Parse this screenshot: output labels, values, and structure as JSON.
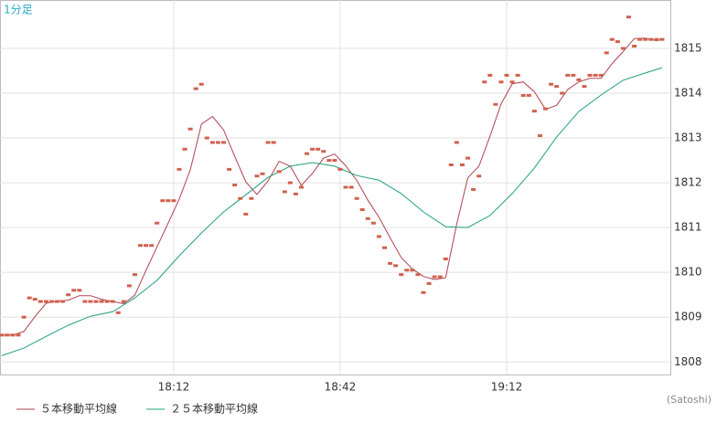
{
  "chart_data": {
    "type": "line",
    "title": "1分足",
    "credit": "(Satoshi)",
    "xlim": [
      1060.7,
      1181.5
    ],
    "ylim": [
      1807.72,
      1816.08
    ],
    "xticks": [
      {
        "value": 1092,
        "label": "18:12"
      },
      {
        "value": 1122,
        "label": "18:42"
      },
      {
        "value": 1152,
        "label": "19:12"
      }
    ],
    "yticks": [
      1808,
      1809,
      1810,
      1811,
      1812,
      1813,
      1814,
      1815
    ],
    "grid": true,
    "points": {
      "color": "#d0604e",
      "x": [
        1061,
        1062,
        1063,
        1064,
        1065,
        1066,
        1067,
        1068,
        1069,
        1070,
        1071,
        1072,
        1073,
        1074,
        1075,
        1076,
        1077,
        1078,
        1079,
        1080,
        1081,
        1082,
        1083,
        1084,
        1085,
        1086,
        1087,
        1088,
        1089,
        1090,
        1091,
        1092,
        1093,
        1094,
        1095,
        1096,
        1097,
        1098,
        1099,
        1100,
        1101,
        1102,
        1103,
        1104,
        1105,
        1106,
        1107,
        1108,
        1109,
        1110,
        1111,
        1112,
        1113,
        1114,
        1115,
        1116,
        1117,
        1118,
        1119,
        1120,
        1121,
        1122,
        1123,
        1124,
        1125,
        1126,
        1127,
        1128,
        1129,
        1130,
        1131,
        1132,
        1133,
        1134,
        1135,
        1136,
        1137,
        1138,
        1139,
        1140,
        1141,
        1142,
        1143,
        1144,
        1145,
        1146,
        1147,
        1148,
        1149,
        1150,
        1151,
        1152,
        1153,
        1154,
        1155,
        1156,
        1157,
        1158,
        1159,
        1160,
        1161,
        1162,
        1163,
        1164,
        1165,
        1166,
        1167,
        1168,
        1169,
        1170,
        1171,
        1172,
        1173,
        1174,
        1175,
        1176,
        1177,
        1178,
        1179,
        1180
      ],
      "values": [
        1808.6,
        1808.6,
        1808.6,
        1808.6,
        1809.0,
        1809.43,
        1809.4,
        1809.35,
        1809.35,
        1809.35,
        1809.35,
        1809.35,
        1809.5,
        1809.6,
        1809.6,
        1809.35,
        1809.35,
        1809.35,
        1809.35,
        1809.35,
        1809.35,
        1809.1,
        1809.35,
        1809.7,
        1809.95,
        1810.6,
        1810.6,
        1810.6,
        1811.1,
        1811.6,
        1811.6,
        1811.6,
        1812.3,
        1812.75,
        1813.2,
        1814.1,
        1814.2,
        1813.0,
        1812.9,
        1812.9,
        1812.9,
        1812.3,
        1811.95,
        1811.65,
        1811.3,
        1811.65,
        1812.15,
        1812.2,
        1812.9,
        1812.9,
        1812.25,
        1811.8,
        1812.0,
        1811.75,
        1811.9,
        1812.65,
        1812.75,
        1812.75,
        1812.7,
        1812.5,
        1812.5,
        1812.3,
        1811.9,
        1811.9,
        1811.65,
        1811.4,
        1811.2,
        1811.1,
        1810.8,
        1810.55,
        1810.2,
        1810.15,
        1809.95,
        1810.05,
        1810.05,
        1809.95,
        1809.55,
        1809.75,
        1809.9,
        1809.9,
        1810.3,
        1812.4,
        1812.9,
        1812.4,
        1812.55,
        1811.85,
        1812.15,
        1814.25,
        1814.4,
        1813.75,
        1814.25,
        1814.4,
        1814.25,
        1814.4,
        1813.95,
        1813.95,
        1813.6,
        1813.05,
        1813.65,
        1814.2,
        1814.15,
        1814.0,
        1814.4,
        1814.4,
        1814.3,
        1814.15,
        1814.4,
        1814.4,
        1814.4,
        1814.9,
        1815.2,
        1815.15,
        1815.0,
        1815.7,
        1815.05,
        1815.2,
        1815.2,
        1815.2,
        1815.2,
        1815.2
      ]
    },
    "series": [
      {
        "name": "５本移動平均線",
        "color": "#b0404e",
        "x": [
          1061,
          1063,
          1065,
          1067,
          1069,
          1071,
          1073,
          1075,
          1077,
          1079,
          1081,
          1083,
          1085,
          1087,
          1089,
          1091,
          1093,
          1095,
          1097,
          1099,
          1101,
          1103,
          1105,
          1107,
          1109,
          1111,
          1113,
          1115,
          1117,
          1119,
          1121,
          1123,
          1125,
          1127,
          1129,
          1131,
          1133,
          1135,
          1137,
          1139,
          1141,
          1143,
          1145,
          1147,
          1149,
          1151,
          1153,
          1155,
          1157,
          1159,
          1161,
          1163,
          1165,
          1167,
          1169,
          1171,
          1173,
          1175,
          1177,
          1179,
          1180
        ],
        "values": [
          1808.6,
          1808.6,
          1808.68,
          1809.01,
          1809.31,
          1809.36,
          1809.38,
          1809.48,
          1809.48,
          1809.4,
          1809.35,
          1809.3,
          1809.49,
          1810.04,
          1810.57,
          1811.1,
          1811.64,
          1812.29,
          1813.31,
          1813.48,
          1813.18,
          1812.59,
          1812.02,
          1811.74,
          1812.04,
          1812.48,
          1812.37,
          1811.94,
          1812.21,
          1812.55,
          1812.64,
          1812.38,
          1812.05,
          1811.61,
          1811.23,
          1810.77,
          1810.33,
          1810.08,
          1809.91,
          1809.84,
          1809.88,
          1811.08,
          1812.11,
          1812.37,
          1813.04,
          1813.76,
          1814.21,
          1814.25,
          1814.03,
          1813.64,
          1813.73,
          1814.08,
          1814.25,
          1814.33,
          1814.33,
          1814.66,
          1814.93,
          1815.22,
          1815.23,
          1815.17,
          1815.2
        ]
      },
      {
        "name": "２５本移動平均線",
        "color": "#1fa07c",
        "x": [
          1061,
          1065,
          1069,
          1073,
          1077,
          1081,
          1085,
          1089,
          1093,
          1097,
          1101,
          1105,
          1109,
          1113,
          1117,
          1121,
          1125,
          1129,
          1133,
          1137,
          1141,
          1145,
          1149,
          1153,
          1157,
          1161,
          1165,
          1169,
          1173,
          1177,
          1180
        ],
        "values": [
          1808.14,
          1808.31,
          1808.57,
          1808.82,
          1809.02,
          1809.12,
          1809.43,
          1809.82,
          1810.37,
          1810.88,
          1811.35,
          1811.73,
          1812.12,
          1812.37,
          1812.45,
          1812.37,
          1812.16,
          1812.06,
          1811.76,
          1811.35,
          1811.02,
          1811.0,
          1811.27,
          1811.76,
          1812.33,
          1813.02,
          1813.59,
          1813.96,
          1814.29,
          1814.45,
          1814.57
        ]
      }
    ]
  }
}
